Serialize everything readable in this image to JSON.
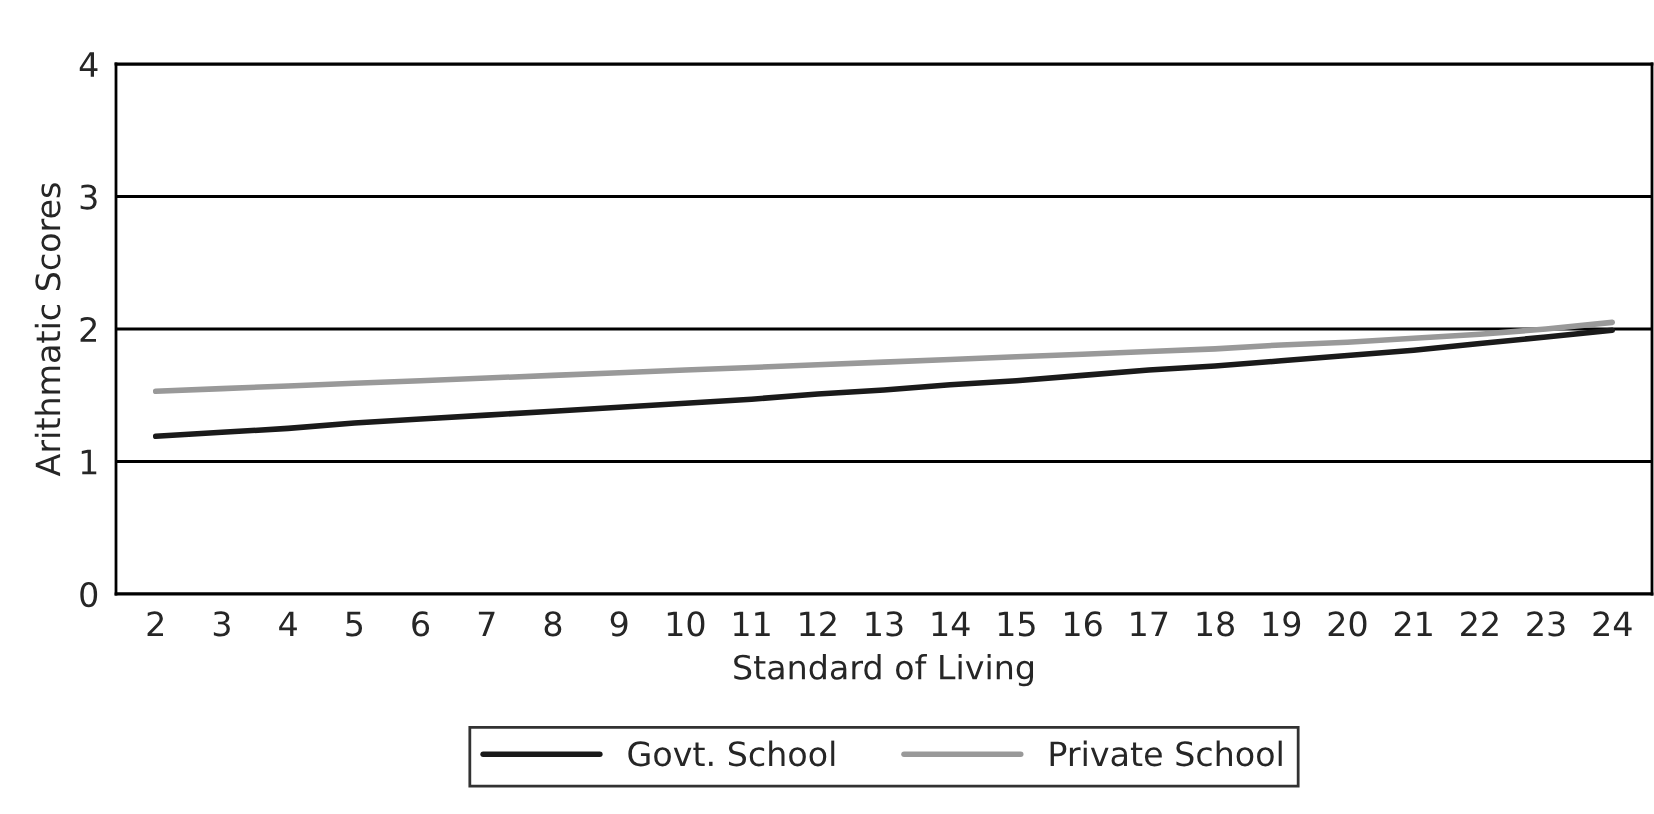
{
  "chart_data": {
    "type": "line",
    "xlabel": "Standard of Living",
    "ylabel": "Arithmatic Scores",
    "categories": [
      "2",
      "3",
      "4",
      "5",
      "6",
      "7",
      "8",
      "9",
      "10",
      "11",
      "12",
      "13",
      "14",
      "15",
      "16",
      "17",
      "18",
      "19",
      "20",
      "21",
      "22",
      "23",
      "24"
    ],
    "series": [
      {
        "name": "Govt. School",
        "color": "#1a1a1a",
        "values": [
          1.19,
          1.22,
          1.25,
          1.29,
          1.32,
          1.35,
          1.38,
          1.41,
          1.44,
          1.47,
          1.51,
          1.54,
          1.58,
          1.61,
          1.65,
          1.69,
          1.72,
          1.76,
          1.8,
          1.84,
          1.89,
          1.94,
          1.99
        ]
      },
      {
        "name": "Private School",
        "color": "#999999",
        "values": [
          1.53,
          1.55,
          1.57,
          1.59,
          1.61,
          1.63,
          1.65,
          1.67,
          1.69,
          1.71,
          1.73,
          1.75,
          1.77,
          1.79,
          1.81,
          1.83,
          1.85,
          1.88,
          1.9,
          1.93,
          1.96,
          2.0,
          2.05
        ]
      }
    ],
    "ylim": [
      0,
      4
    ],
    "yticks": [
      0,
      1,
      2,
      3,
      4
    ],
    "grid": "y",
    "legend": "bottom",
    "marker": "none",
    "line_style": "solid"
  }
}
